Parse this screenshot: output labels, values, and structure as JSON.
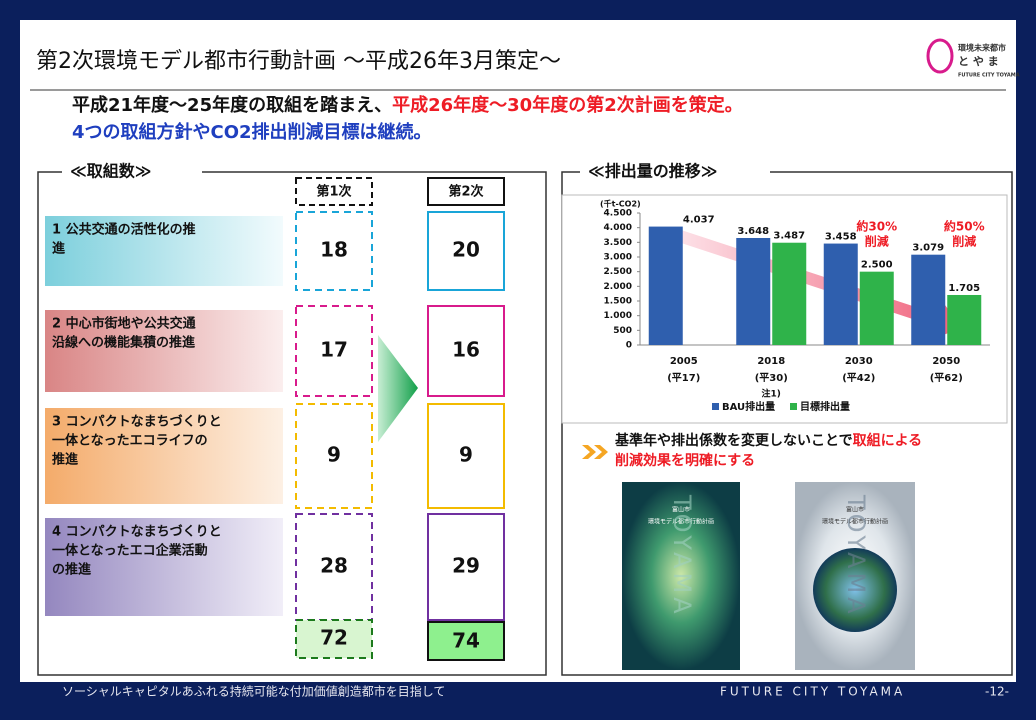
{
  "header": {
    "title": "第2次環境モデル都市行動計画 ～平成26年3月策定～",
    "logo": [
      "環境未来都市",
      "と や ま",
      "FUTURE CITY TOYAMA"
    ]
  },
  "summary": {
    "line1": [
      "平成21年度～25年度の取組を踏まえ、",
      "平成26年度～30年度の第2次計画を策定。"
    ],
    "line2": "4つの取組方針やCO2排出削減目標は継続。"
  },
  "actions": {
    "title": "≪取組数≫",
    "columns": [
      "第1次",
      "第2次"
    ],
    "rows": [
      {
        "label": [
          "1 公共交通の活性化の推",
          "進"
        ],
        "first": 18,
        "second": 20
      },
      {
        "label": [
          "2 中心市街地や公共交通",
          "沿線への機能集積の推進"
        ],
        "first": 17,
        "second": 16
      },
      {
        "label": [
          "3 コンパクトなまちづくりと",
          "一体となったエコライフの",
          "推進"
        ],
        "first": 9,
        "second": 9
      },
      {
        "label": [
          "4 コンパクトなまちづくりと",
          "一体となったエコ企業活動",
          "の推進"
        ],
        "first": 28,
        "second": 29
      }
    ],
    "totals": [
      72,
      74
    ]
  },
  "chart_data": {
    "type": "bar",
    "title": "≪排出量の推移≫",
    "unit": "(千t-CO2)",
    "categories": [
      "2005",
      "2018",
      "2030",
      "2050"
    ],
    "category_notes": [
      "(平17)",
      "(平30)",
      "(平42)",
      "(平62)"
    ],
    "footnote": "注1)",
    "series": [
      {
        "name": "BAU排出量",
        "color": "#2f5fae",
        "values": [
          4037,
          3648,
          3458,
          3079
        ],
        "value_labels": [
          "4.037",
          "3.648",
          "3.458",
          "3.079"
        ]
      },
      {
        "name": "目標排出量",
        "color": "#2fb34a",
        "values": [
          null,
          3487,
          2500,
          1705
        ],
        "value_labels": [
          null,
          "3.487",
          "2.500",
          "1.705"
        ]
      }
    ],
    "ylim": [
      0,
      4500
    ],
    "yticks": [
      0,
      {
        "value": 500,
        "label": "500"
      },
      {
        "value": 1000,
        "label": "1.000"
      },
      {
        "value": 1500,
        "label": "1.500"
      },
      {
        "value": 2000,
        "label": "2.000"
      },
      {
        "value": 2500,
        "label": "2.500"
      },
      {
        "value": 3000,
        "label": "3.000"
      },
      {
        "value": 3500,
        "label": "3.500"
      },
      {
        "value": 4000,
        "label": "4.000"
      },
      {
        "value": 4500,
        "label": "4.500"
      }
    ],
    "annotations": [
      [
        "約30%",
        "削減"
      ],
      [
        "約50%",
        "削減"
      ]
    ],
    "legend": "bottom"
  },
  "note": [
    "基準年や排出係数を変更しないことで",
    "取組による",
    "削減効果を明確にする"
  ],
  "covers": [
    {
      "city": "富山市",
      "title": "環境モデル都市行動計画",
      "word": "TOYAMA"
    },
    {
      "city": "富山市",
      "title": "環境モデル都市行動計画",
      "word": "TOYAMA"
    }
  ],
  "footer": {
    "slogan": "ソーシャルキャピタルあふれる持続可能な付加価値創造都市を目指して",
    "brand": "FUTURE CITY TOYAMA",
    "page": "-12-"
  }
}
